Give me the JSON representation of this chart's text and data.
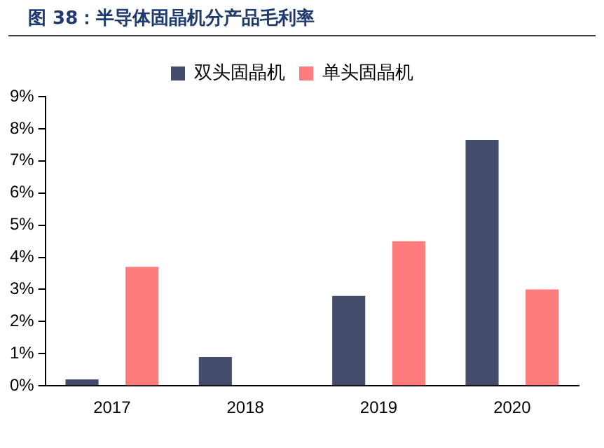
{
  "chart_data": {
    "type": "bar",
    "title": "图 38：半导体固晶机分产品毛利率",
    "categories": [
      "2017",
      "2018",
      "2019",
      "2020"
    ],
    "series": [
      {
        "name": "双头固晶机",
        "color": "#444c6b",
        "values": [
          0.2,
          0.9,
          2.8,
          7.65
        ]
      },
      {
        "name": "单头固晶机",
        "color": "#ff7c7c",
        "values": [
          3.7,
          null,
          4.5,
          3.0
        ]
      }
    ],
    "ylim": [
      0,
      9
    ],
    "yticks": [
      {
        "value": 0,
        "label": "0%"
      },
      {
        "value": 1,
        "label": "1%"
      },
      {
        "value": 2,
        "label": "2%"
      },
      {
        "value": 3,
        "label": "3%"
      },
      {
        "value": 4,
        "label": "4%"
      },
      {
        "value": 5,
        "label": "5%"
      },
      {
        "value": 6,
        "label": "6%"
      },
      {
        "value": 7,
        "label": "7%"
      },
      {
        "value": 8,
        "label": "8%"
      },
      {
        "value": 9,
        "label": "9%"
      }
    ],
    "grid": false,
    "legend": "top"
  }
}
